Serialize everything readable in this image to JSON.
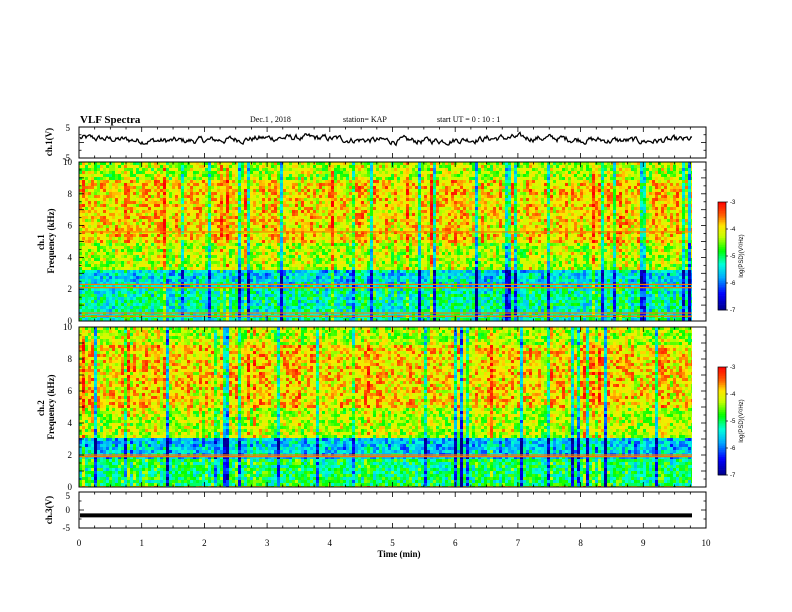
{
  "header": {
    "title": "VLF Spectra",
    "date": "Dec.1 , 2018",
    "station": "station= KAP",
    "start": "start UT = 0 : 10 : 1"
  },
  "chart_data": [
    {
      "type": "line",
      "panel": "ch1-waveform",
      "ylabel": "ch.1(V)",
      "ylim": [
        -5,
        5
      ],
      "yticks": [
        "5",
        "-5"
      ],
      "xlim": [
        0,
        10
      ],
      "approx_level_v": 1.0,
      "approx_amplitude_v": 1.5
    },
    {
      "type": "heatmap",
      "panel": "ch1-spectrogram",
      "ylabel": "ch.1 Frequency (kHz)",
      "ylim": [
        0,
        10
      ],
      "yticks": [
        "0",
        "2",
        "4",
        "6",
        "8",
        "10"
      ],
      "xlim": [
        0,
        10
      ],
      "colorbar": {
        "label": "log(PSD)(V²/Hz)",
        "range": [
          -7,
          -3
        ],
        "ticks": [
          "-3",
          "-4",
          "-5",
          "-6",
          "-7"
        ]
      },
      "bands_khz": [
        {
          "from": 0.0,
          "to": 2.0,
          "level": -5.2
        },
        {
          "from": 2.0,
          "to": 3.3,
          "level": -5.5
        },
        {
          "from": 3.3,
          "to": 5.0,
          "level": -4.3
        },
        {
          "from": 5.0,
          "to": 8.8,
          "level": -3.9
        },
        {
          "from": 8.8,
          "to": 10.0,
          "level": -4.3
        }
      ],
      "lines_khz": [
        0.3,
        0.5,
        2.1,
        2.3,
        5.6
      ]
    },
    {
      "type": "heatmap",
      "panel": "ch2-spectrogram",
      "ylabel": "ch.2 Frequency (kHz)",
      "ylim": [
        0,
        10
      ],
      "yticks": [
        "0",
        "2",
        "4",
        "6",
        "8",
        "10"
      ],
      "xlim": [
        0,
        10
      ],
      "colorbar": {
        "label": "log(PSD)(V²/Hz)",
        "range": [
          -7,
          -3
        ],
        "ticks": [
          "-3",
          "-4",
          "-5",
          "-6",
          "-7"
        ]
      },
      "bands_khz": [
        {
          "from": 0.0,
          "to": 1.8,
          "level": -5.0
        },
        {
          "from": 1.8,
          "to": 3.0,
          "level": -5.6
        },
        {
          "from": 3.0,
          "to": 5.0,
          "level": -4.3
        },
        {
          "from": 5.0,
          "to": 8.8,
          "level": -3.9
        },
        {
          "from": 8.8,
          "to": 10.0,
          "level": -4.3
        }
      ],
      "lines_khz": [
        1.9,
        2.0
      ]
    },
    {
      "type": "line",
      "panel": "ch3-waveform",
      "ylabel": "ch.3(V)",
      "ylim": [
        -5,
        5
      ],
      "yticks": [
        "5",
        "0",
        "-5"
      ],
      "xlim": [
        0,
        10
      ],
      "level_v": -1.5,
      "xlabel": "Time (min)",
      "xticks": [
        "0",
        "1",
        "2",
        "3",
        "4",
        "5",
        "6",
        "7",
        "8",
        "9",
        "10"
      ]
    }
  ]
}
